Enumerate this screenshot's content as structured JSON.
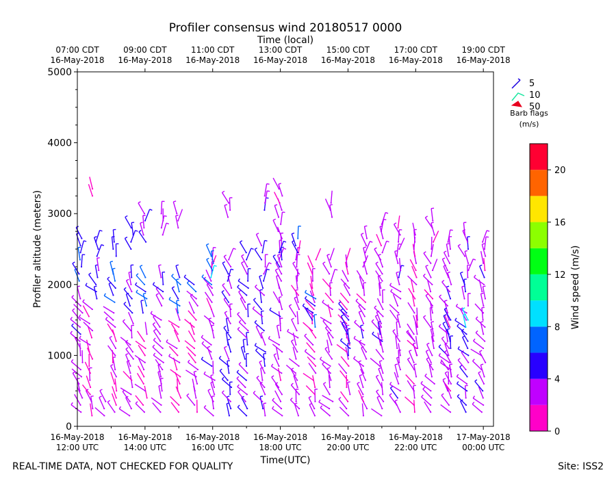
{
  "chart_data": {
    "type": "wind-barb-profile",
    "title": "Profiler consensus wind 20180517 0000",
    "top_axis_label": "Time (local)",
    "xlabel": "Time(UTC)",
    "ylabel": "Profiler altitude (meters)",
    "xlim_hours_utc": [
      12.0,
      24.3
    ],
    "ylim": [
      0,
      5000
    ],
    "yticks": [
      0,
      1000,
      2000,
      3000,
      4000,
      5000
    ],
    "yticklabels": [
      "0",
      "1000",
      "2000",
      "3000",
      "4000",
      "5000"
    ],
    "xticks_utc": [
      {
        "hour": 12,
        "date": "16-May-2018",
        "time": "12:00 UTC"
      },
      {
        "hour": 14,
        "date": "16-May-2018",
        "time": "14:00 UTC"
      },
      {
        "hour": 16,
        "date": "16-May-2018",
        "time": "16:00 UTC"
      },
      {
        "hour": 18,
        "date": "16-May-2018",
        "time": "18:00 UTC"
      },
      {
        "hour": 20,
        "date": "16-May-2018",
        "time": "20:00 UTC"
      },
      {
        "hour": 22,
        "date": "16-May-2018",
        "time": "22:00 UTC"
      },
      {
        "hour": 24,
        "date": "17-May-2018",
        "time": "00:00 UTC"
      }
    ],
    "xticks_local": [
      {
        "hour": 12,
        "time": "07:00 CDT",
        "date": "16-May-2018"
      },
      {
        "hour": 14,
        "time": "09:00 CDT",
        "date": "16-May-2018"
      },
      {
        "hour": 16,
        "time": "11:00 CDT",
        "date": "16-May-2018"
      },
      {
        "hour": 18,
        "time": "13:00 CDT",
        "date": "16-May-2018"
      },
      {
        "hour": 20,
        "time": "15:00 CDT",
        "date": "16-May-2018"
      },
      {
        "hour": 22,
        "time": "17:00 CDT",
        "date": "16-May-2018"
      },
      {
        "hour": 24,
        "time": "19:00 CDT",
        "date": "16-May-2018"
      }
    ],
    "barb_legend": {
      "entries": [
        {
          "label": "5",
          "color": "#1a00e0"
        },
        {
          "label": "10",
          "color": "#19e6a0"
        },
        {
          "label": "50",
          "color": "#e8001e"
        }
      ],
      "title": "Barb flags",
      "units": "(m/s)"
    },
    "colorbar": {
      "label": "Wind speed (m/s)",
      "range": [
        0,
        22
      ],
      "ticks": [
        0,
        4,
        8,
        12,
        16,
        20
      ],
      "ticklabels": [
        "0",
        "4",
        "8",
        "12",
        "16",
        "20"
      ],
      "bins": [
        {
          "from": 0,
          "to": 2,
          "color": "#ff00c8"
        },
        {
          "from": 2,
          "to": 4,
          "color": "#c000ff"
        },
        {
          "from": 4,
          "to": 6,
          "color": "#2800ff"
        },
        {
          "from": 6,
          "to": 8,
          "color": "#0064ff"
        },
        {
          "from": 8,
          "to": 10,
          "color": "#00e0ff"
        },
        {
          "from": 10,
          "to": 12,
          "color": "#00ff96"
        },
        {
          "from": 12,
          "to": 14,
          "color": "#00ff14"
        },
        {
          "from": 14,
          "to": 16,
          "color": "#8cff00"
        },
        {
          "from": 16,
          "to": 18,
          "color": "#ffe600"
        },
        {
          "from": 18,
          "to": 20,
          "color": "#ff6400"
        },
        {
          "from": 20,
          "to": 22,
          "color": "#ff0032"
        }
      ]
    },
    "series": [
      {
        "time": 12.1,
        "segments": [
          [
            200,
            1800,
            3
          ],
          [
            2050,
            2250,
            6
          ],
          [
            2350,
            2650,
            5
          ]
        ]
      },
      {
        "time": 12.4,
        "segments": [
          [
            150,
            1700,
            2
          ]
        ]
      },
      {
        "time": 12.5,
        "segments": [
          [
            3250,
            3400,
            2
          ]
        ]
      },
      {
        "time": 12.6,
        "segments": [
          [
            1800,
            2200,
            5
          ],
          [
            2400,
            2650,
            5
          ]
        ]
      },
      {
        "time": 12.85,
        "segments": [
          [
            150,
            350,
            3
          ]
        ]
      },
      {
        "time": 13.1,
        "segments": [
          [
            200,
            1600,
            2
          ],
          [
            1750,
            2150,
            6
          ],
          [
            2400,
            2600,
            5
          ]
        ]
      },
      {
        "time": 13.6,
        "segments": [
          [
            150,
            1500,
            3
          ],
          [
            1600,
            2100,
            4
          ],
          [
            2500,
            2800,
            5
          ]
        ]
      },
      {
        "time": 14.0,
        "segments": [
          [
            200,
            1300,
            2
          ],
          [
            1600,
            2100,
            6
          ],
          [
            2600,
            3000,
            4
          ]
        ]
      },
      {
        "time": 14.5,
        "segments": [
          [
            200,
            1550,
            3
          ],
          [
            1700,
            2100,
            4
          ],
          [
            2700,
            3000,
            3
          ]
        ]
      },
      {
        "time": 15.0,
        "segments": [
          [
            200,
            1500,
            2
          ],
          [
            1600,
            2100,
            6
          ],
          [
            2800,
            3050,
            3
          ]
        ]
      },
      {
        "time": 15.5,
        "segments": [
          [
            200,
            1800,
            2
          ],
          [
            1900,
            2050,
            6
          ]
        ]
      },
      {
        "time": 16.0,
        "segments": [
          [
            150,
            2400,
            3
          ],
          [
            2000,
            2400,
            7
          ]
        ]
      },
      {
        "time": 16.5,
        "segments": [
          [
            150,
            2350,
            4
          ],
          [
            2950,
            3200,
            3
          ]
        ]
      },
      {
        "time": 17.0,
        "segments": [
          [
            150,
            2500,
            4
          ]
        ]
      },
      {
        "time": 17.5,
        "segments": [
          [
            150,
            2600,
            4
          ],
          [
            3050,
            3250,
            4
          ]
        ]
      },
      {
        "time": 18.0,
        "segments": [
          [
            150,
            3400,
            3
          ],
          [
            2250,
            2500,
            5
          ]
        ]
      },
      {
        "time": 18.5,
        "segments": [
          [
            150,
            2450,
            3
          ],
          [
            2450,
            2700,
            6
          ]
        ]
      },
      {
        "time": 19.0,
        "segments": [
          [
            150,
            2400,
            2
          ],
          [
            1400,
            1800,
            5
          ]
        ]
      },
      {
        "time": 19.5,
        "segments": [
          [
            150,
            2350,
            3
          ],
          [
            2950,
            3200,
            3
          ]
        ]
      },
      {
        "time": 20.0,
        "segments": [
          [
            150,
            2400,
            2
          ],
          [
            1000,
            1600,
            5
          ]
        ]
      },
      {
        "time": 20.5,
        "segments": [
          [
            150,
            2700,
            3
          ]
        ]
      },
      {
        "time": 21.0,
        "segments": [
          [
            150,
            2900,
            3
          ],
          [
            1200,
            1400,
            5
          ]
        ]
      },
      {
        "time": 21.5,
        "segments": [
          [
            200,
            2800,
            3
          ]
        ]
      },
      {
        "time": 22.0,
        "segments": [
          [
            200,
            2700,
            2
          ],
          [
            1000,
            1400,
            3
          ]
        ]
      },
      {
        "time": 22.5,
        "segments": [
          [
            200,
            2900,
            3
          ]
        ]
      },
      {
        "time": 23.0,
        "segments": [
          [
            200,
            2650,
            3
          ],
          [
            500,
            1500,
            4
          ]
        ]
      },
      {
        "time": 23.5,
        "segments": [
          [
            200,
            2700,
            4
          ],
          [
            1400,
            1550,
            8
          ]
        ]
      },
      {
        "time": 24.0,
        "segments": [
          [
            200,
            2650,
            3
          ]
        ]
      }
    ]
  },
  "footer": {
    "left_note": "REAL-TIME DATA, NOT CHECKED FOR QUALITY",
    "site": "Site: ISS2"
  }
}
